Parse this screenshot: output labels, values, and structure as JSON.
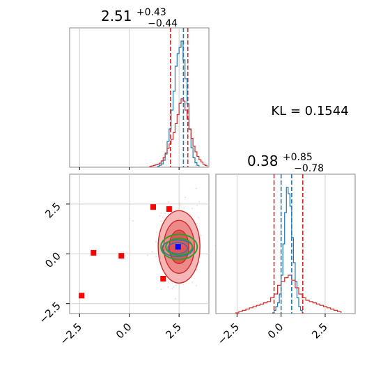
{
  "chart_data": [
    {
      "type": "histogram",
      "panel": "marginal-x",
      "title": {
        "main": "2.51",
        "sup": "+0.43",
        "sub": "−0.44"
      },
      "xlim": [
        -3,
        4
      ],
      "bins": [
        {
          "series": "blue",
          "x": [
            1.4,
            1.5,
            1.6,
            1.7,
            1.8,
            1.9,
            2.0,
            2.1,
            2.2,
            2.3,
            2.4,
            2.5,
            2.6,
            2.7,
            2.8,
            2.9,
            3.0,
            3.1,
            3.2,
            3.3,
            3.4,
            3.5
          ],
          "y": [
            0,
            0.01,
            0.02,
            0.05,
            0.1,
            0.2,
            0.3,
            0.45,
            0.6,
            0.8,
            0.9,
            0.95,
            1.0,
            0.85,
            0.7,
            0.5,
            0.3,
            0.15,
            0.07,
            0.03,
            0.01,
            0.0
          ]
        },
        {
          "series": "red",
          "x": [
            1.0,
            1.1,
            1.2,
            1.3,
            1.4,
            1.5,
            1.6,
            1.7,
            1.8,
            1.9,
            2.0,
            2.1,
            2.2,
            2.3,
            2.4,
            2.5,
            2.6,
            2.7,
            2.8,
            2.9,
            3.0,
            3.1,
            3.2,
            3.3,
            3.4,
            3.5,
            3.6,
            3.7,
            3.8,
            3.9
          ],
          "y": [
            0,
            0.005,
            0.01,
            0.015,
            0.02,
            0.03,
            0.05,
            0.08,
            0.12,
            0.16,
            0.2,
            0.24,
            0.3,
            0.38,
            0.46,
            0.56,
            0.6,
            0.58,
            0.5,
            0.42,
            0.33,
            0.25,
            0.18,
            0.13,
            0.09,
            0.06,
            0.04,
            0.02,
            0.01,
            0.0
          ]
        }
      ],
      "markers": [
        {
          "color": "red",
          "x": 2.07
        },
        {
          "color": "red",
          "x": 2.94
        },
        {
          "color": "blue",
          "x": 2.72
        }
      ],
      "colors": {
        "blue": "#1f77b4",
        "red": "#d62728"
      }
    },
    {
      "type": "scatter",
      "panel": "joint",
      "xlim": [
        -3,
        4
      ],
      "ylim": [
        -3,
        4
      ],
      "xticks": [
        "−2.5",
        "0.0",
        "2.5"
      ],
      "yticks": [
        "2.5",
        "0.0",
        "−2.5"
      ],
      "points": [
        {
          "x": 1.2,
          "y": 2.35
        },
        {
          "x": 2.0,
          "y": 2.25
        },
        {
          "x": -1.8,
          "y": 0.05
        },
        {
          "x": -0.4,
          "y": -0.1
        },
        {
          "x": 1.7,
          "y": -1.25
        },
        {
          "x": -2.4,
          "y": -2.1
        }
      ],
      "blue_point": {
        "x": 2.45,
        "y": 0.35
      },
      "colors": {
        "red": "#ff0000",
        "blue": "#0000ff",
        "contour_red": "#d62728",
        "contour_green": "#2ca02c",
        "contour_blue": "#1f77b4"
      }
    },
    {
      "type": "histogram",
      "panel": "marginal-y",
      "title": {
        "main": "0.38",
        "sup": "+0.85",
        "sub": "−0.78"
      },
      "xlim": [
        -3.7,
        4.2
      ],
      "xticks": [
        "−2.5",
        "0.0",
        "2.5"
      ],
      "bins": [
        {
          "series": "blue",
          "x": [
            -0.5,
            -0.4,
            -0.3,
            -0.2,
            -0.1,
            0.0,
            0.1,
            0.2,
            0.3,
            0.4,
            0.5,
            0.6,
            0.7,
            0.8,
            0.9,
            1.0,
            1.1,
            1.2
          ],
          "y": [
            0,
            0.02,
            0.05,
            0.08,
            0.15,
            0.3,
            0.55,
            0.8,
            1.0,
            0.95,
            0.85,
            0.6,
            0.4,
            0.25,
            0.12,
            0.05,
            0.02,
            0.0
          ]
        },
        {
          "series": "red",
          "x": [
            -2.6,
            -2.4,
            -2.2,
            -2.0,
            -1.8,
            -1.6,
            -1.4,
            -1.2,
            -1.0,
            -0.8,
            -0.6,
            -0.4,
            -0.2,
            0.0,
            0.2,
            0.4,
            0.6,
            0.8,
            1.0,
            1.2,
            1.4,
            1.6,
            1.8,
            2.0,
            2.2,
            2.4,
            2.6,
            2.8,
            3.0,
            3.2,
            3.4
          ],
          "y": [
            0,
            0.01,
            0.02,
            0.03,
            0.04,
            0.05,
            0.06,
            0.07,
            0.08,
            0.09,
            0.12,
            0.15,
            0.22,
            0.25,
            0.28,
            0.3,
            0.26,
            0.2,
            0.15,
            0.12,
            0.1,
            0.09,
            0.08,
            0.07,
            0.06,
            0.05,
            0.04,
            0.03,
            0.02,
            0.01,
            0.0
          ]
        }
      ],
      "markers": [
        {
          "color": "red",
          "x": -0.4
        },
        {
          "color": "red",
          "x": 1.23
        },
        {
          "color": "blue",
          "x": 0.0
        },
        {
          "color": "blue",
          "x": 0.6
        }
      ],
      "colors": {
        "blue": "#1f77b4",
        "red": "#d62728"
      }
    }
  ],
  "kl_label": "KL = 0.1544"
}
